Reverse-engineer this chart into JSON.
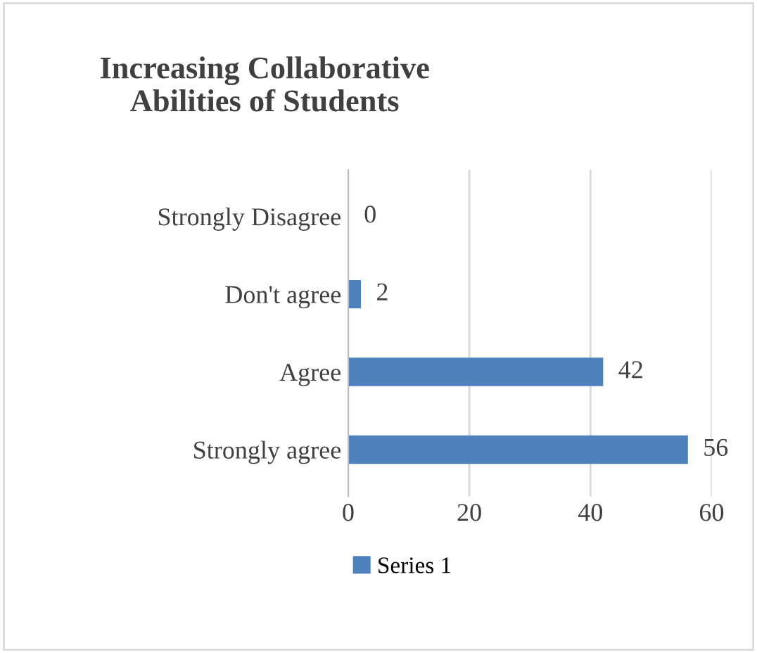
{
  "chart_data": {
    "type": "bar",
    "orientation": "horizontal",
    "title": "Increasing Collaborative\nAbilities of Students",
    "categories": [
      "Strongly Disagree",
      "Don't agree",
      "Agree",
      "Strongly agree"
    ],
    "series": [
      {
        "name": "Series 1",
        "color": "#4f81bd",
        "values": [
          0,
          2,
          42,
          56
        ]
      }
    ],
    "xlim": [
      0,
      60
    ],
    "xticks": [
      0,
      20,
      40,
      60
    ],
    "grid": "x",
    "legend": "bottom",
    "data_labels": true
  }
}
